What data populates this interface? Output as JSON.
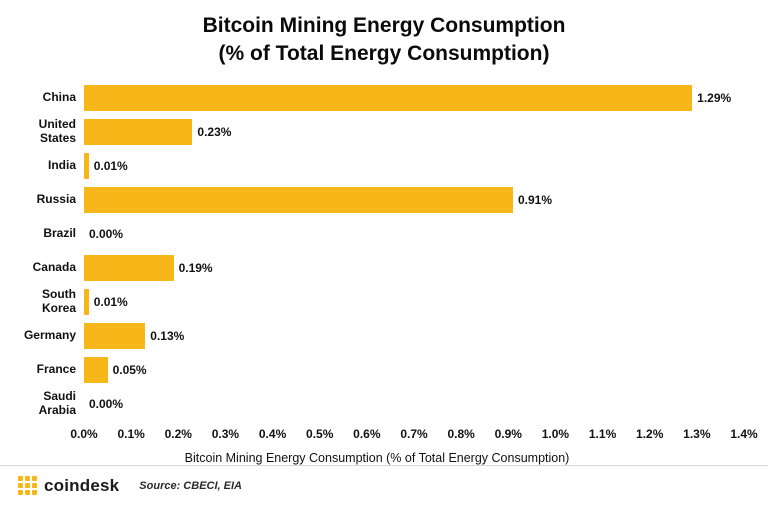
{
  "title": {
    "line1": "Bitcoin Mining Energy Consumption",
    "line2": "(% of Total Energy Consumption)"
  },
  "chart_data": {
    "type": "bar",
    "orientation": "horizontal",
    "title": "Bitcoin Mining Energy Consumption (% of Total Energy Consumption)",
    "categories": [
      "China",
      "United States",
      "India",
      "Russia",
      "Brazil",
      "Canada",
      "South Korea",
      "Germany",
      "France",
      "Saudi Arabia"
    ],
    "values": [
      1.29,
      0.23,
      0.01,
      0.91,
      0.0,
      0.19,
      0.01,
      0.13,
      0.05,
      0.0
    ],
    "value_labels": [
      "1.29%",
      "0.23%",
      "0.01%",
      "0.91%",
      "0.00%",
      "0.19%",
      "0.01%",
      "0.13%",
      "0.05%",
      "0.00%"
    ],
    "xlabel": "Bitcoin Mining Energy Consumption (% of Total Energy Consumption)",
    "ylabel": "",
    "xlim": [
      0,
      1.4
    ],
    "x_ticks": [
      "0.0%",
      "0.1%",
      "0.2%",
      "0.3%",
      "0.4%",
      "0.5%",
      "0.6%",
      "0.7%",
      "0.8%",
      "0.9%",
      "1.0%",
      "1.1%",
      "1.2%",
      "1.3%",
      "1.4%"
    ],
    "bar_color": "#F7B718",
    "grid": false,
    "legend": "none"
  },
  "footer": {
    "brand": "coindesk",
    "source": "Source: CBECI, EIA"
  }
}
